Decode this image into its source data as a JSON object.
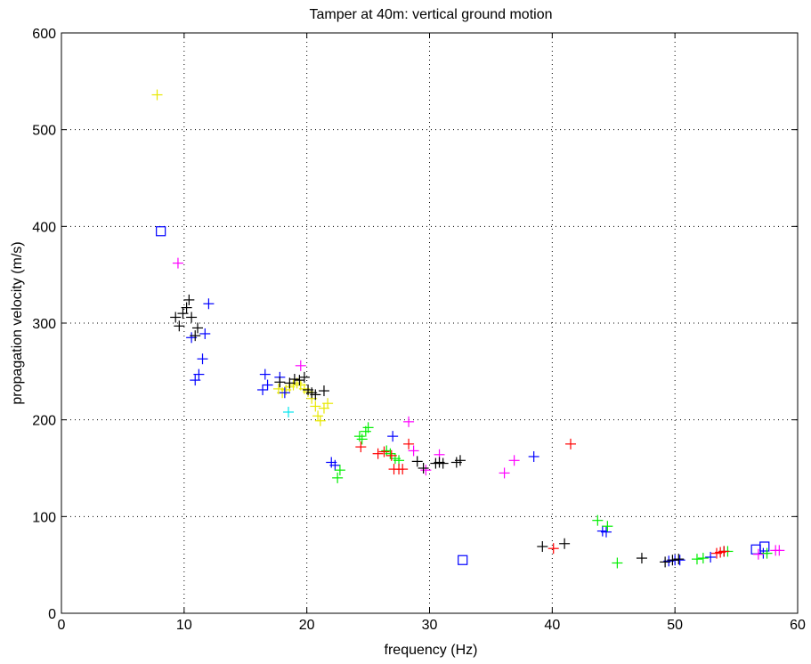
{
  "chart_data": {
    "type": "scatter",
    "title": "Tamper at 40m: vertical ground motion",
    "xlabel": "frequency (Hz)",
    "ylabel": "propagation velocity (m/s)",
    "xlim": [
      0,
      60
    ],
    "ylim": [
      0,
      600
    ],
    "xticks": [
      0,
      10,
      20,
      30,
      40,
      50,
      60
    ],
    "yticks": [
      0,
      100,
      200,
      300,
      400,
      500,
      600
    ],
    "grid": true,
    "colors": {
      "yellow": "#e8e800",
      "blue": "#0000ff",
      "magenta": "#ff00ff",
      "black": "#000000",
      "cyan": "#00e5ee",
      "green": "#00ee00",
      "red": "#ff0000"
    },
    "series": [
      {
        "color": "yellow",
        "marker": "plus",
        "points": [
          [
            7.8,
            536
          ],
          [
            17.7,
            232
          ],
          [
            18.0,
            228
          ],
          [
            18.3,
            231
          ],
          [
            18.6,
            234
          ],
          [
            18.9,
            236
          ],
          [
            19.2,
            238
          ],
          [
            19.5,
            236
          ],
          [
            19.8,
            232
          ],
          [
            20.1,
            229
          ],
          [
            20.4,
            222
          ],
          [
            20.7,
            214
          ],
          [
            20.9,
            204
          ],
          [
            21.1,
            199
          ],
          [
            21.4,
            212
          ],
          [
            21.7,
            217
          ]
        ]
      },
      {
        "color": "blue",
        "marker": "plus",
        "points": [
          [
            10.6,
            285
          ],
          [
            10.9,
            241
          ],
          [
            11.2,
            247
          ],
          [
            11.5,
            263
          ],
          [
            11.7,
            289
          ],
          [
            12.0,
            320
          ],
          [
            16.4,
            231
          ],
          [
            16.6,
            247
          ],
          [
            16.8,
            236
          ],
          [
            17.8,
            244
          ],
          [
            18.2,
            228
          ],
          [
            22.0,
            156
          ],
          [
            22.3,
            153
          ],
          [
            27.0,
            183
          ],
          [
            38.5,
            162
          ],
          [
            44.1,
            85
          ],
          [
            44.4,
            84
          ],
          [
            49.5,
            54
          ],
          [
            50.0,
            55
          ],
          [
            50.4,
            55
          ],
          [
            52.9,
            58
          ],
          [
            57.2,
            62
          ]
        ]
      },
      {
        "color": "blue",
        "marker": "square",
        "points": [
          [
            8.1,
            395
          ],
          [
            32.7,
            55
          ],
          [
            56.6,
            66
          ],
          [
            57.3,
            69
          ]
        ]
      },
      {
        "color": "magenta",
        "marker": "plus",
        "points": [
          [
            9.5,
            362
          ],
          [
            19.5,
            256
          ],
          [
            28.3,
            198
          ],
          [
            28.7,
            168
          ],
          [
            30.8,
            164
          ],
          [
            29.7,
            148
          ],
          [
            36.1,
            145
          ],
          [
            36.9,
            158
          ],
          [
            56.8,
            61
          ],
          [
            58.2,
            65
          ],
          [
            58.5,
            65
          ]
        ]
      },
      {
        "color": "black",
        "marker": "plus",
        "points": [
          [
            9.3,
            306
          ],
          [
            9.6,
            297
          ],
          [
            9.9,
            310
          ],
          [
            10.2,
            316
          ],
          [
            10.4,
            324
          ],
          [
            10.6,
            306
          ],
          [
            10.9,
            287
          ],
          [
            11.1,
            295
          ],
          [
            17.8,
            239
          ],
          [
            18.6,
            238
          ],
          [
            19.0,
            242
          ],
          [
            19.4,
            241
          ],
          [
            19.8,
            244
          ],
          [
            20.1,
            231
          ],
          [
            20.4,
            228
          ],
          [
            20.7,
            226
          ],
          [
            21.4,
            230
          ],
          [
            29.0,
            157
          ],
          [
            29.5,
            150
          ],
          [
            30.5,
            155
          ],
          [
            30.8,
            156
          ],
          [
            31.1,
            155
          ],
          [
            32.2,
            156
          ],
          [
            32.5,
            158
          ],
          [
            39.2,
            69
          ],
          [
            41.0,
            72
          ],
          [
            47.3,
            57
          ],
          [
            49.2,
            53
          ],
          [
            49.8,
            55
          ],
          [
            50.3,
            56
          ],
          [
            54.0,
            64
          ]
        ]
      },
      {
        "color": "cyan",
        "marker": "plus",
        "points": [
          [
            18.5,
            208
          ]
        ]
      },
      {
        "color": "green",
        "marker": "plus",
        "points": [
          [
            22.5,
            140
          ],
          [
            22.7,
            148
          ],
          [
            24.3,
            183
          ],
          [
            24.5,
            180
          ],
          [
            24.8,
            188
          ],
          [
            25.0,
            192
          ],
          [
            26.5,
            168
          ],
          [
            26.8,
            165
          ],
          [
            27.2,
            160
          ],
          [
            27.5,
            158
          ],
          [
            43.7,
            96
          ],
          [
            44.5,
            90
          ],
          [
            45.3,
            52
          ],
          [
            51.8,
            56
          ],
          [
            52.3,
            57
          ],
          [
            54.3,
            64
          ],
          [
            57.5,
            62
          ]
        ]
      },
      {
        "color": "red",
        "marker": "plus",
        "points": [
          [
            24.4,
            172
          ],
          [
            25.8,
            165
          ],
          [
            26.3,
            167
          ],
          [
            26.9,
            163
          ],
          [
            27.1,
            149
          ],
          [
            27.5,
            149
          ],
          [
            27.8,
            149
          ],
          [
            28.3,
            175
          ],
          [
            40.1,
            67
          ],
          [
            41.5,
            175
          ],
          [
            53.4,
            62
          ],
          [
            53.7,
            63
          ],
          [
            54.0,
            64
          ]
        ]
      }
    ]
  }
}
